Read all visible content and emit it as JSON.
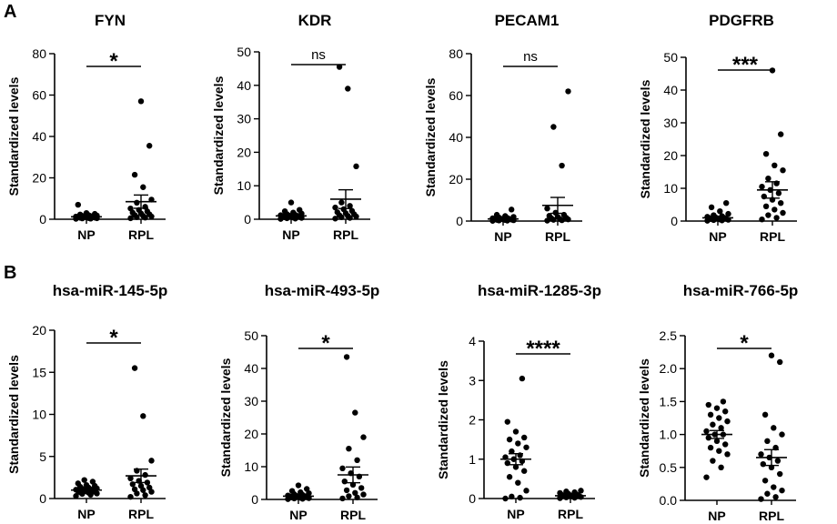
{
  "panel_labels": [
    "A",
    "B"
  ],
  "chart_data": [
    {
      "type": "scatter",
      "title": "FYN",
      "ylabel": "Standardized levels",
      "ylim": [
        0,
        80
      ],
      "yticks": [
        0,
        20,
        40,
        60,
        80
      ],
      "categories": [
        "NP",
        "RPL"
      ],
      "significance": "*",
      "groups": [
        {
          "name": "NP",
          "mean": 1.2,
          "sem": 0.4,
          "values": [
            0.2,
            0.3,
            0.4,
            0.5,
            0.6,
            0.7,
            0.8,
            0.9,
            1.0,
            1.1,
            1.2,
            1.3,
            1.5,
            1.6,
            1.8,
            2.0,
            2.3,
            2.6,
            3.0,
            7.0
          ]
        },
        {
          "name": "RPL",
          "mean": 8.5,
          "sem": 3.2,
          "values": [
            0.5,
            0.8,
            1.0,
            1.3,
            1.6,
            2.0,
            2.4,
            2.8,
            3.2,
            3.8,
            4.5,
            5.2,
            6.0,
            8.0,
            9.5,
            15.5,
            21.5,
            35.5,
            57.0
          ]
        }
      ]
    },
    {
      "type": "scatter",
      "title": "KDR",
      "ylabel": "Standardized levels",
      "ylim": [
        0,
        50
      ],
      "yticks": [
        0,
        10,
        20,
        30,
        40,
        50
      ],
      "categories": [
        "NP",
        "RPL"
      ],
      "significance": "ns",
      "groups": [
        {
          "name": "NP",
          "mean": 1.0,
          "sem": 0.3,
          "values": [
            0.1,
            0.2,
            0.3,
            0.4,
            0.5,
            0.6,
            0.7,
            0.8,
            0.9,
            1.0,
            1.1,
            1.2,
            1.3,
            1.5,
            1.7,
            2.0,
            2.4,
            2.8,
            5.0
          ]
        },
        {
          "name": "RPL",
          "mean": 6.0,
          "sem": 2.8,
          "values": [
            0.2,
            0.4,
            0.6,
            0.8,
            1.0,
            1.2,
            1.5,
            1.8,
            2.1,
            2.5,
            3.0,
            3.5,
            4.0,
            5.0,
            15.8,
            39.0,
            45.5
          ]
        }
      ]
    },
    {
      "type": "scatter",
      "title": "PECAM1",
      "ylabel": "Standardized levels",
      "ylim": [
        0,
        80
      ],
      "yticks": [
        0,
        20,
        40,
        60,
        80
      ],
      "categories": [
        "NP",
        "RPL"
      ],
      "significance": "ns",
      "groups": [
        {
          "name": "NP",
          "mean": 1.0,
          "sem": 0.35,
          "values": [
            0.1,
            0.2,
            0.3,
            0.4,
            0.5,
            0.6,
            0.7,
            0.8,
            0.9,
            1.0,
            1.1,
            1.3,
            1.5,
            1.7,
            2.0,
            2.4,
            3.0,
            5.5
          ]
        },
        {
          "name": "RPL",
          "mean": 7.5,
          "sem": 3.8,
          "values": [
            0.2,
            0.4,
            0.6,
            0.8,
            1.0,
            1.3,
            1.6,
            2.0,
            2.5,
            3.0,
            4.0,
            6.0,
            26.5,
            45.0,
            62.0
          ]
        }
      ]
    },
    {
      "type": "scatter",
      "title": "PDGFRB",
      "ylabel": "Standardized levels",
      "ylim": [
        0,
        50
      ],
      "yticks": [
        0,
        10,
        20,
        30,
        40,
        50
      ],
      "categories": [
        "NP",
        "RPL"
      ],
      "significance": "***",
      "groups": [
        {
          "name": "NP",
          "mean": 1.0,
          "sem": 0.35,
          "values": [
            0.1,
            0.2,
            0.3,
            0.4,
            0.5,
            0.6,
            0.7,
            0.8,
            0.9,
            1.0,
            1.1,
            1.3,
            1.5,
            1.8,
            2.2,
            3.0,
            4.2,
            5.5
          ]
        },
        {
          "name": "RPL",
          "mean": 9.5,
          "sem": 2.5,
          "values": [
            0.5,
            1.0,
            1.8,
            2.5,
            3.5,
            4.5,
            5.5,
            6.5,
            7.5,
            8.5,
            9.5,
            10.5,
            11.5,
            13.0,
            15.5,
            17.0,
            20.5,
            26.5,
            46.0
          ]
        }
      ]
    },
    {
      "type": "scatter",
      "title": "hsa-miR-145-5p",
      "ylabel": "Standardized levels",
      "ylim": [
        0,
        20
      ],
      "yticks": [
        0,
        5,
        10,
        15,
        20
      ],
      "categories": [
        "NP",
        "RPL"
      ],
      "significance": "*",
      "groups": [
        {
          "name": "NP",
          "mean": 1.0,
          "sem": 0.1,
          "values": [
            0.3,
            0.45,
            0.55,
            0.6,
            0.7,
            0.75,
            0.8,
            0.85,
            0.9,
            0.95,
            1.0,
            1.05,
            1.1,
            1.15,
            1.2,
            1.3,
            1.4,
            1.5,
            1.6,
            1.8,
            2.0,
            2.2
          ]
        },
        {
          "name": "RPL",
          "mean": 2.7,
          "sem": 0.8,
          "values": [
            0.2,
            0.4,
            0.6,
            0.8,
            1.0,
            1.1,
            1.3,
            1.5,
            1.7,
            1.9,
            2.1,
            2.4,
            2.8,
            3.3,
            4.5,
            9.8,
            15.5
          ]
        }
      ]
    },
    {
      "type": "scatter",
      "title": "hsa-miR-493-5p",
      "ylabel": "Standardized levels",
      "ylim": [
        0,
        50
      ],
      "yticks": [
        0,
        10,
        20,
        30,
        40,
        50
      ],
      "categories": [
        "NP",
        "RPL"
      ],
      "significance": "*",
      "groups": [
        {
          "name": "NP",
          "mean": 1.0,
          "sem": 0.3,
          "values": [
            0.1,
            0.2,
            0.3,
            0.4,
            0.5,
            0.6,
            0.7,
            0.8,
            0.9,
            1.0,
            1.1,
            1.2,
            1.4,
            1.6,
            1.9,
            2.2,
            2.6,
            3.2,
            4.3
          ]
        },
        {
          "name": "RPL",
          "mean": 7.5,
          "sem": 2.4,
          "values": [
            0.3,
            0.6,
            1.0,
            1.5,
            2.0,
            2.8,
            3.5,
            4.5,
            5.5,
            7.0,
            8.0,
            9.5,
            12.0,
            15.5,
            19.0,
            26.5,
            43.5
          ]
        }
      ]
    },
    {
      "type": "scatter",
      "title": "hsa-miR-1285-3p",
      "ylabel": "Standardized levels",
      "ylim": [
        0,
        4
      ],
      "yticks": [
        0,
        1,
        2,
        3,
        4
      ],
      "categories": [
        "NP",
        "RPL"
      ],
      "significance": "****",
      "groups": [
        {
          "name": "NP",
          "mean": 1.0,
          "sem": 0.14,
          "values": [
            0.0,
            0.02,
            0.05,
            0.2,
            0.4,
            0.55,
            0.7,
            0.8,
            0.9,
            0.95,
            1.0,
            1.05,
            1.1,
            1.2,
            1.3,
            1.4,
            1.5,
            1.55,
            1.7,
            1.95,
            3.05
          ]
        },
        {
          "name": "RPL",
          "mean": 0.07,
          "sem": 0.015,
          "values": [
            0.01,
            0.02,
            0.03,
            0.04,
            0.05,
            0.06,
            0.07,
            0.08,
            0.09,
            0.1,
            0.12,
            0.14,
            0.16,
            0.18,
            0.2
          ]
        }
      ]
    },
    {
      "type": "scatter",
      "title": "hsa-miR-766-5p",
      "ylabel": "Standardized levels",
      "ylim": [
        0,
        2.5
      ],
      "yticks": [
        "0.0",
        "0.5",
        "1.0",
        "1.5",
        "2.0",
        "2.5"
      ],
      "categories": [
        "NP",
        "RPL"
      ],
      "significance": "*",
      "groups": [
        {
          "name": "NP",
          "mean": 1.0,
          "sem": 0.06,
          "values": [
            0.35,
            0.5,
            0.6,
            0.7,
            0.75,
            0.8,
            0.85,
            0.9,
            0.95,
            1.0,
            1.0,
            1.05,
            1.1,
            1.15,
            1.2,
            1.25,
            1.3,
            1.35,
            1.4,
            1.45,
            1.5
          ]
        },
        {
          "name": "RPL",
          "mean": 0.65,
          "sem": 0.12,
          "values": [
            0.02,
            0.05,
            0.1,
            0.15,
            0.2,
            0.3,
            0.4,
            0.5,
            0.55,
            0.6,
            0.65,
            0.7,
            0.8,
            0.9,
            1.0,
            1.1,
            1.3,
            2.1,
            2.2
          ]
        }
      ]
    }
  ]
}
